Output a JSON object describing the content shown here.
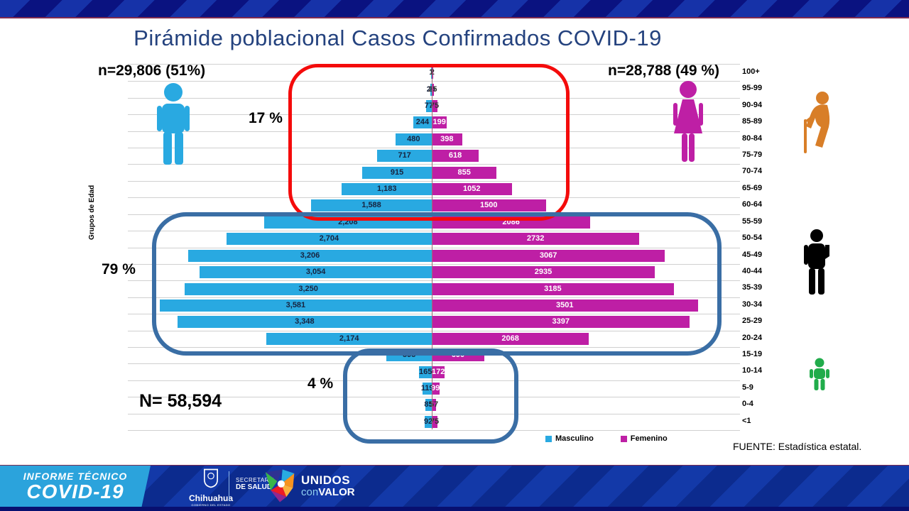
{
  "page": {
    "title": "Pirámide poblacional Casos Confirmados COVID-19",
    "male_stat": "n=29,806 (51%)",
    "female_stat": "n=28,788 (49 %)",
    "total": "N= 58,594",
    "axis_label": "Grupos de Edad",
    "source": "FUENTE:  Estadística estatal."
  },
  "annotations": {
    "elderly_pct": "17 %",
    "adult_pct": "79 %",
    "child_pct": "4 %"
  },
  "legend": {
    "male": "Masculino",
    "female": "Femenino"
  },
  "colors": {
    "male": "#29A9E1",
    "female": "#BE1FA5",
    "title": "#24427E",
    "red_box": "#F40B0B",
    "blue_box": "#3A6EA5",
    "elderly_icon": "#D87E28",
    "adult_icon": "#000000",
    "child_icon": "#21AC4B"
  },
  "chart_data": {
    "type": "bar",
    "subtype": "population-pyramid",
    "title": "Pirámide poblacional Casos Confirmados COVID-19",
    "ylabel": "Grupos de Edad",
    "legend_position": "bottom",
    "grid": true,
    "categories": [
      "100+",
      "95-99",
      "90-94",
      "85-89",
      "80-84",
      "75-79",
      "70-74",
      "65-69",
      "60-64",
      "55-59",
      "50-54",
      "45-49",
      "40-44",
      "35-39",
      "30-34",
      "25-29",
      "20-24",
      "15-19",
      "10-14",
      "5-9",
      "0-4",
      "<1"
    ],
    "series": [
      {
        "name": "Masculino",
        "color": "#29A9E1",
        "total": 29806,
        "share": "51%",
        "values": [
          1,
          20,
          77,
          244,
          480,
          717,
          915,
          1183,
          1588,
          2208,
          2704,
          3206,
          3054,
          3250,
          3581,
          3348,
          2174,
          595,
          165,
          119,
          85,
          92
        ],
        "labels": [
          "1",
          "20",
          "77",
          "244",
          "480",
          "717",
          "915",
          "1,183",
          "1,588",
          "2,208",
          "2,704",
          "3,206",
          "3,054",
          "3,250",
          "3,581",
          "3,348",
          "2,174",
          "595",
          "165",
          "119",
          "85",
          "92"
        ]
      },
      {
        "name": "Femenino",
        "color": "#BE1FA5",
        "total": 28788,
        "share": "49 %",
        "values": [
          2,
          25,
          75,
          199,
          398,
          618,
          855,
          1052,
          1500,
          2086,
          2732,
          3067,
          2935,
          3185,
          3501,
          3397,
          2068,
          690,
          172,
          99,
          57,
          75
        ],
        "labels": [
          "2",
          "25",
          "75",
          "199",
          "398",
          "618",
          "855",
          "1052",
          "1500",
          "2086",
          "2732",
          "3067",
          "2935",
          "3185",
          "3501",
          "3397",
          "2068",
          "690",
          "172",
          "99",
          "57",
          "75"
        ]
      }
    ],
    "overall_total": 58594,
    "group_percentages": {
      "60_plus": "17 %",
      "20_59": "79 %",
      "0_19": "4 %"
    }
  },
  "footer": {
    "report_line1": "INFORME TÉCNICO",
    "report_line2": "COVID-19",
    "gov_name": "Chihuahua",
    "gov_caption": "GOBIERNO DEL ESTADO",
    "secretary_line1": "SECRETARÍA",
    "secretary_line2": "DE SALUD",
    "brand_line1": "UNIDOS",
    "brand_con": "con",
    "brand_valor": "VALOR"
  }
}
